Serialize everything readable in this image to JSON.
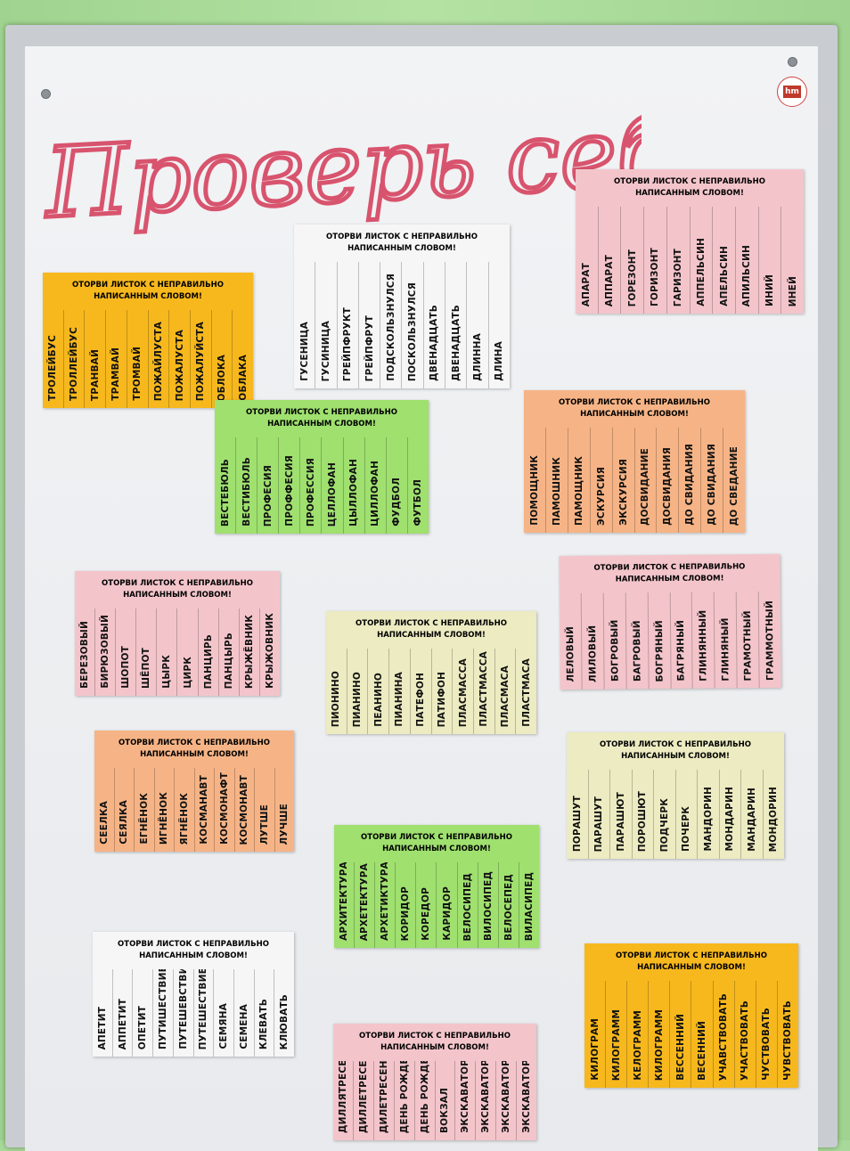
{
  "heading": "Проверь себя!",
  "logo_text": "hm",
  "sheets": [
    {
      "head": "ОТОРВИ ЛИСТОК С НЕПРАВИЛЬНО\nНАПИСАННЫМ СЛОВОМ!",
      "words": [
        "ТРОЛЕЙБУС",
        "ТРОЛЛЕЙБУС",
        "ТРАНВАЙ",
        "ТРАМВАЙ",
        "ТРОМВАЙ",
        "ПОЖАЙЛУСТА",
        "ПОЖАЛУСТА",
        "ПОЖАЛУЙСТА",
        "ОБЛОКА",
        "ОБЛАКА"
      ],
      "color": "#f7b81d"
    },
    {
      "head": "ОТОРВИ ЛИСТОК С НЕПРАВИЛЬНО\nНАПИСАННЫМ СЛОВОМ!",
      "words": [
        "ГУСЕНИЦА",
        "ГУСИНИЦА",
        "ГРЕЙПФРУКТ",
        "ГРЕЙПФРУТ",
        "ПОДСКОЛЬЗНУЛСЯ",
        "ПОСКОЛЬЗНУЛСЯ",
        "ДВЕНАДЦАТЬ",
        "ДВЕНАДЦАТЬ",
        "ДЛИННА",
        "ДЛИНА"
      ],
      "color": "#f6f6f6"
    },
    {
      "head": "ОТОРВИ ЛИСТОК С НЕПРАВИЛЬНО\nНАПИСАННЫМ СЛОВОМ!",
      "words": [
        "АПАРАТ",
        "АППАРАТ",
        "ГОРЕЗОНТ",
        "ГОРИЗОНТ",
        "ГАРИЗОНТ",
        "АППЕЛЬСИН",
        "АПЕЛЬСИН",
        "АПИЛЬСИН",
        "ИНИЙ",
        "ИНЕЙ"
      ],
      "color": "#f3c5cb"
    },
    {
      "head": "ОТОРВИ ЛИСТОК С НЕПРАВИЛЬНО\nНАПИСАННЫМ СЛОВОМ!",
      "words": [
        "ВЕСТЕБЮЛЬ",
        "ВЕСТИБЮЛЬ",
        "ПРОФЕСИЯ",
        "ПРОФФЕСИЯ",
        "ПРОФЕССИЯ",
        "ЦЕЛЛОФАН",
        "ЦЫЛЛОФАН",
        "ЦИЛЛОФАН",
        "ФУДБОЛ",
        "ФУТБОЛ"
      ],
      "color": "#9fe06f"
    },
    {
      "head": "ОТОРВИ ЛИСТОК С НЕПРАВИЛЬНО\nНАПИСАННЫМ СЛОВОМ!",
      "words": [
        "ПОМОЩНИК",
        "ПАМОШНИК",
        "ПАМОЩНИК",
        "ЭСКУРСИЯ",
        "ЭКСКУРСИЯ",
        "ДОСВИДАНИЕ",
        "ДОСВИДАНИЯ",
        "ДО СВИДАНИЯ",
        "ДО СВИДАНИЯ",
        "ДО СВЕДАНИЕ"
      ],
      "color": "#f6b486"
    },
    {
      "head": "ОТОРВИ ЛИСТОК С НЕПРАВИЛЬНО\nНАПИСАННЫМ СЛОВОМ!",
      "words": [
        "БЕРЕЗОВЫЙ",
        "БИРЮЗОВЫЙ",
        "ШОПОТ",
        "ШЁПОТ",
        "ЦЫРК",
        "ЦИРК",
        "ПАНЦИРЬ",
        "ПАНЦЫРЬ",
        "КРЫЖЁВНИК",
        "КРЫЖОВНИК"
      ],
      "color": "#f3c5cb"
    },
    {
      "head": "ОТОРВИ ЛИСТОК С НЕПРАВИЛЬНО\nНАПИСАННЫМ СЛОВОМ!",
      "words": [
        "ПИОНИНО",
        "ПИАНИНО",
        "ПЕАНИНО",
        "ПИАНИНА",
        "ПАТЕФОН",
        "ПАТИФОН",
        "ПЛАСМАССА",
        "ПЛАСТМАССА",
        "ПЛАСМАСА",
        "ПЛАСТМАСА"
      ],
      "color": "#ecebc1"
    },
    {
      "head": "ОТОРВИ ЛИСТОК С НЕПРАВИЛЬНО\nНАПИСАННЫМ СЛОВОМ!",
      "words": [
        "ЛЕЛОВЫЙ",
        "ЛИЛОВЫЙ",
        "БОГРОВЫЙ",
        "БАГРОВЫЙ",
        "БОГРЯНЫЙ",
        "БАГРЯНЫЙ",
        "ГЛИНЯННЫЙ",
        "ГЛИНЯНЫЙ",
        "ГРАМОТНЫЙ",
        "ГРАММОТНЫЙ"
      ],
      "color": "#f3c5cb"
    },
    {
      "head": "ОТОРВИ ЛИСТОК С НЕПРАВИЛЬНО\nНАПИСАННЫМ СЛОВОМ!",
      "words": [
        "СЕЕЛКА",
        "СЕЯЛКА",
        "ЕГНЁНОК",
        "ИГНЁНОК",
        "ЯГНЁНОК",
        "КОСМАНАВТ",
        "КОСМОНАФТ",
        "КОСМОНАВТ",
        "ЛУТШЕ",
        "ЛУЧШЕ"
      ],
      "color": "#f6b486"
    },
    {
      "head": "ОТОРВИ ЛИСТОК С НЕПРАВИЛЬНО\nНАПИСАННЫМ СЛОВОМ!",
      "words": [
        "ПОРАШУТ",
        "ПАРАШУТ",
        "ПАРАШЮТ",
        "ПОРОШЮТ",
        "ПОДЧЕРК",
        "ПОЧЕРК",
        "МАНДОРИН",
        "МОНДАРИН",
        "МАНДАРИН",
        "МОНДОРИН"
      ],
      "color": "#ecebc1"
    },
    {
      "head": "ОТОРВИ ЛИСТОК С НЕПРАВИЛЬНО\nНАПИСАННЫМ СЛОВОМ!",
      "words": [
        "АРХИТЕКТУРА",
        "АРХЕТЕКТУРА",
        "АРХЕТИКТУРА",
        "КОРИДОР",
        "КОРЕДОР",
        "КАРИДОР",
        "ВЕЛОСИПЕД",
        "ВИЛОСИПЕД",
        "ВЕЛОСЕПЕД",
        "ВИЛАСИПЕД"
      ],
      "color": "#9fe06f"
    },
    {
      "head": "ОТОРВИ ЛИСТОК С НЕПРАВИЛЬНО\nНАПИСАННЫМ СЛОВОМ!",
      "words": [
        "АПЕТИТ",
        "АППЕТИТ",
        "ОПЕТИТ",
        "ПУТИШЕСТВИЕ",
        "ПУТЕШЕВСТВИЕ",
        "ПУТЕШЕСТВИЕ",
        "СЕМЯНА",
        "СЕМЕНА",
        "КЛЕВАТЬ",
        "КЛЮВАТЬ"
      ],
      "color": "#f6f6f6"
    },
    {
      "head": "ОТОРВИ ЛИСТОК С НЕПРАВИЛЬНО\nНАПИСАННЫМ СЛОВОМ!",
      "words": [
        "КИЛОГРАМ",
        "КИЛОГРАММ",
        "КЕЛОГРАММ",
        "КИЛОГРАММ",
        "ВЕССЕННИЙ",
        "ВЕСЕННИЙ",
        "УЧАВСТВОВАТЬ",
        "УЧАСТВОВАТЬ",
        "ЧУСТВОВАТЬ",
        "ЧУВСТВОВАТЬ"
      ],
      "color": "#f7b81d"
    },
    {
      "head": "ОТОРВИ ЛИСТОК С НЕПРАВИЛЬНО\nНАПИСАННЫМ СЛОВОМ!",
      "words": [
        "ДИЛЛЯТРЕСЕНИЕ",
        "ДИЛЛЕТРЕСЕНИЕ",
        "ДИЛЕТРЕСЕНИЕ",
        "ДЕНЬ РОЖДЕНИЯ",
        "ДЕНЬ РОЖДЕНИЯ",
        "ВОКЗАЛ",
        "ЭКСКАВАТОР",
        "ЭКСКАВАТОР",
        "ЭКСКАВАТОР",
        "ЭКСКАВАТОР"
      ],
      "color": "#f3c5cb"
    }
  ]
}
